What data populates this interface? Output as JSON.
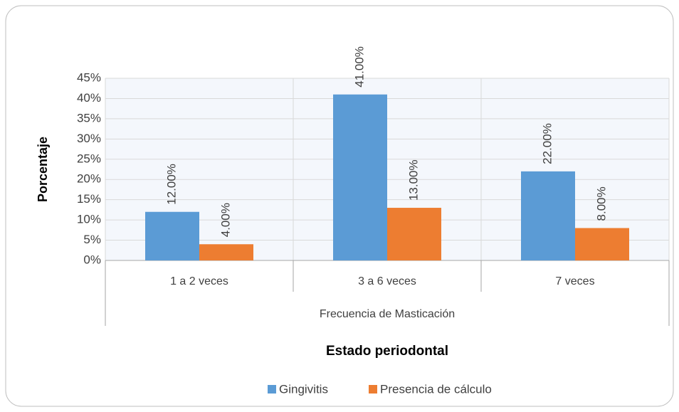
{
  "chart_data": {
    "type": "bar",
    "categories": [
      "1 a 2 veces",
      "3 a 6 veces",
      "7 veces"
    ],
    "category_group": "Frecuencia de Masticación",
    "ylabel": "Porcentaje",
    "xlabel": "Estado periodontal",
    "series": [
      {
        "name": "Gingivitis",
        "color": "#5b9bd5",
        "values": [
          12,
          41,
          22
        ],
        "value_labels": [
          "12.00%",
          "41.00%",
          "22.00%"
        ]
      },
      {
        "name": "Presencia de cálculo",
        "color": "#ed7d31",
        "values": [
          4,
          13,
          8
        ],
        "value_labels": [
          "4.00%",
          "13.00%",
          "8.00%"
        ]
      }
    ],
    "ylim": [
      0,
      45
    ],
    "yticks": [
      {
        "value": 0,
        "label": "0%"
      },
      {
        "value": 5,
        "label": "5%"
      },
      {
        "value": 10,
        "label": "10%"
      },
      {
        "value": 15,
        "label": "15%"
      },
      {
        "value": 20,
        "label": "20%"
      },
      {
        "value": 25,
        "label": "25%"
      },
      {
        "value": 30,
        "label": "30%"
      },
      {
        "value": 35,
        "label": "35%"
      },
      {
        "value": 40,
        "label": "40%"
      },
      {
        "value": 45,
        "label": "45%"
      }
    ],
    "grid": true,
    "legend": "bottom"
  }
}
